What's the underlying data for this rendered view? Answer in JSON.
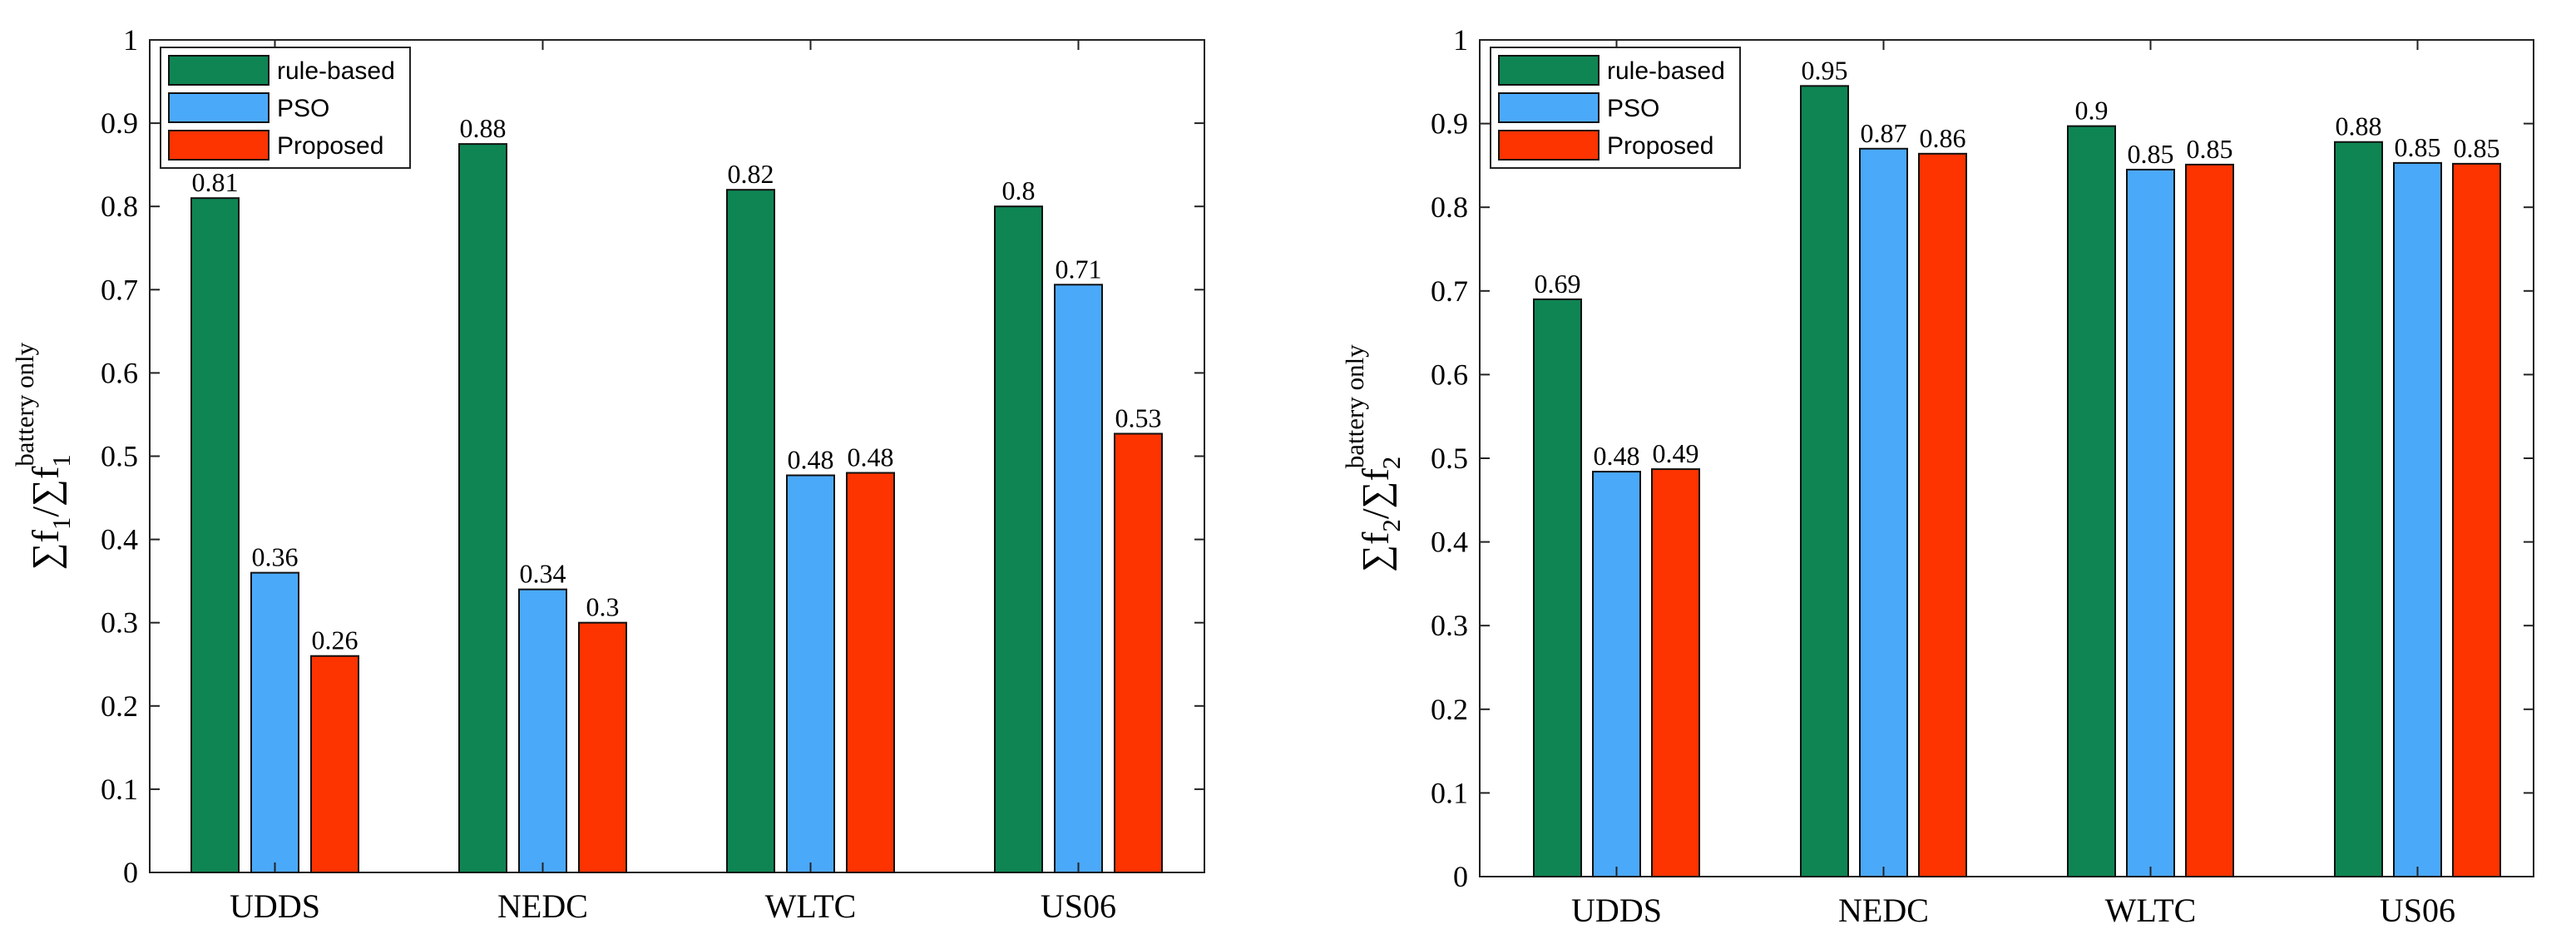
{
  "chart_data": [
    {
      "type": "bar",
      "categories": [
        "UDDS",
        "NEDC",
        "WLTC",
        "US06"
      ],
      "series": [
        {
          "name": "rule-based",
          "color": "#0e8553",
          "values": [
            0.81,
            0.875,
            0.82,
            0.8
          ],
          "labels": [
            "0.81",
            "0.88",
            "0.82",
            "0.8"
          ]
        },
        {
          "name": "PSO",
          "color": "#4ba9fa",
          "values": [
            0.36,
            0.34,
            0.477,
            0.706
          ],
          "labels": [
            "0.36",
            "0.34",
            "0.48",
            "0.71"
          ]
        },
        {
          "name": "Proposed",
          "color": "#fd3300",
          "values": [
            0.26,
            0.3,
            0.48,
            0.527
          ],
          "labels": [
            "0.26",
            "0.3",
            "0.48",
            "0.53"
          ]
        }
      ],
      "ylim": [
        0,
        1
      ],
      "yticks": [
        "0",
        "0.1",
        "0.2",
        "0.3",
        "0.4",
        "0.5",
        "0.6",
        "0.7",
        "0.8",
        "0.9",
        "1"
      ],
      "ylabel": {
        "main": "∑f",
        "sub1": "1",
        "slash": "/∑f",
        "sup2": "battery only",
        "sub2": "1"
      },
      "legend_position": "top-left",
      "grid": false
    },
    {
      "type": "bar",
      "categories": [
        "UDDS",
        "NEDC",
        "WLTC",
        "US06"
      ],
      "series": [
        {
          "name": "rule-based",
          "color": "#0e8553",
          "values": [
            0.69,
            0.945,
            0.897,
            0.878
          ],
          "labels": [
            "0.69",
            "0.95",
            "0.9",
            "0.88"
          ]
        },
        {
          "name": "PSO",
          "color": "#4ba9fa",
          "values": [
            0.484,
            0.87,
            0.845,
            0.853
          ],
          "labels": [
            "0.48",
            "0.87",
            "0.85",
            "0.85"
          ]
        },
        {
          "name": "Proposed",
          "color": "#fd3300",
          "values": [
            0.487,
            0.864,
            0.851,
            0.852
          ],
          "labels": [
            "0.49",
            "0.86",
            "0.85",
            "0.85"
          ]
        }
      ],
      "ylim": [
        0,
        1
      ],
      "yticks": [
        "0",
        "0.1",
        "0.2",
        "0.3",
        "0.4",
        "0.5",
        "0.6",
        "0.7",
        "0.8",
        "0.9",
        "1"
      ],
      "ylabel": {
        "main": "∑f",
        "sub1": "2",
        "slash": "/∑f",
        "sup2": "battery only",
        "sub2": "2"
      },
      "legend_position": "top-left",
      "grid": false
    }
  ]
}
